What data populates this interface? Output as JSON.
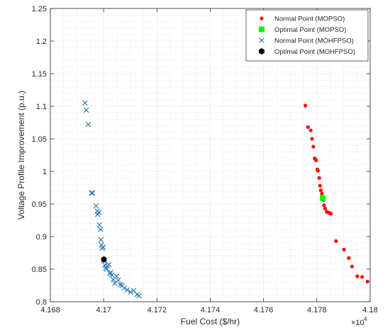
{
  "chart_data": {
    "type": "scatter",
    "title": "",
    "xlabel": "Fuel Cost ($/hr)",
    "ylabel": "Voltage Profile Improvement (p.u.)",
    "x_multiplier_label": "×10",
    "x_multiplier_exp": "4",
    "xlim": [
      4.168,
      4.18
    ],
    "ylim": [
      0.8,
      1.25
    ],
    "xticks": [
      4.168,
      4.17,
      4.172,
      4.174,
      4.176,
      4.178,
      4.18
    ],
    "xtick_labels": [
      "4.168",
      "4.17",
      "4.172",
      "4.174",
      "4.176",
      "4.178",
      "4.18"
    ],
    "yticks": [
      0.8,
      0.85,
      0.9,
      0.95,
      1.0,
      1.05,
      1.1,
      1.15,
      1.2,
      1.25
    ],
    "ytick_labels": [
      "0.8",
      "0.85",
      "0.9",
      "0.95",
      "1",
      "1.05",
      "1.1",
      "1.15",
      "1.2",
      "1.25"
    ],
    "grid": true,
    "legend_position": "top-right",
    "series": [
      {
        "name": "Normal Point (MOPSO)",
        "color": "#ff0000",
        "marker": "dot",
        "x": [
          4.17757,
          4.17767,
          4.17777,
          4.17782,
          4.17787,
          4.17792,
          4.17797,
          4.17802,
          4.17804,
          4.17809,
          4.17812,
          4.17815,
          4.17819,
          4.17822,
          4.17825,
          4.17827,
          4.17831,
          4.17837,
          4.17842,
          4.17848,
          4.17853,
          4.17872,
          4.17902,
          4.1792,
          4.17932,
          4.17952,
          4.1797,
          4.1799
        ],
        "y": [
          1.101,
          1.068,
          1.063,
          1.05,
          1.038,
          1.02,
          1.017,
          1.003,
          1.001,
          0.99,
          0.978,
          0.971,
          0.966,
          0.96,
          0.956,
          0.948,
          0.943,
          0.938,
          0.937,
          0.936,
          0.935,
          0.893,
          0.88,
          0.867,
          0.854,
          0.839,
          0.838,
          0.831
        ]
      },
      {
        "name": "Optimal Point (MOPSO)",
        "color": "#00ff00",
        "marker": "square",
        "x": [
          4.17822
        ],
        "y": [
          0.959
        ]
      },
      {
        "name": "Normal Point (MOHFPSO)",
        "color": "#1f77b4",
        "marker": "x",
        "x": [
          4.1693,
          4.16935,
          4.16942,
          4.16955,
          4.16958,
          4.16972,
          4.16976,
          4.16978,
          4.16982,
          4.16984,
          4.16988,
          4.1699,
          4.16992,
          4.16995,
          4.16998,
          4.17001,
          4.17005,
          4.17008,
          4.17011,
          4.17015,
          4.1702,
          4.17023,
          4.17026,
          4.17031,
          4.17036,
          4.17042,
          4.17048,
          4.17055,
          4.17062,
          4.17069,
          4.17078,
          4.17088,
          4.17101,
          4.17113,
          4.17125,
          4.17133
        ],
        "y": [
          1.105,
          1.094,
          1.072,
          0.967,
          0.967,
          0.947,
          0.939,
          0.934,
          0.937,
          0.918,
          0.911,
          0.895,
          0.887,
          0.882,
          0.884,
          0.863,
          0.856,
          0.852,
          0.85,
          0.855,
          0.857,
          0.843,
          0.845,
          0.841,
          0.834,
          0.828,
          0.839,
          0.833,
          0.826,
          0.825,
          0.821,
          0.818,
          0.815,
          0.817,
          0.811,
          0.809
        ]
      },
      {
        "name": "Optimal Point (MOHFPSO)",
        "color": "#000000",
        "marker": "hexagon",
        "x": [
          4.17001
        ],
        "y": [
          0.865
        ]
      }
    ]
  }
}
